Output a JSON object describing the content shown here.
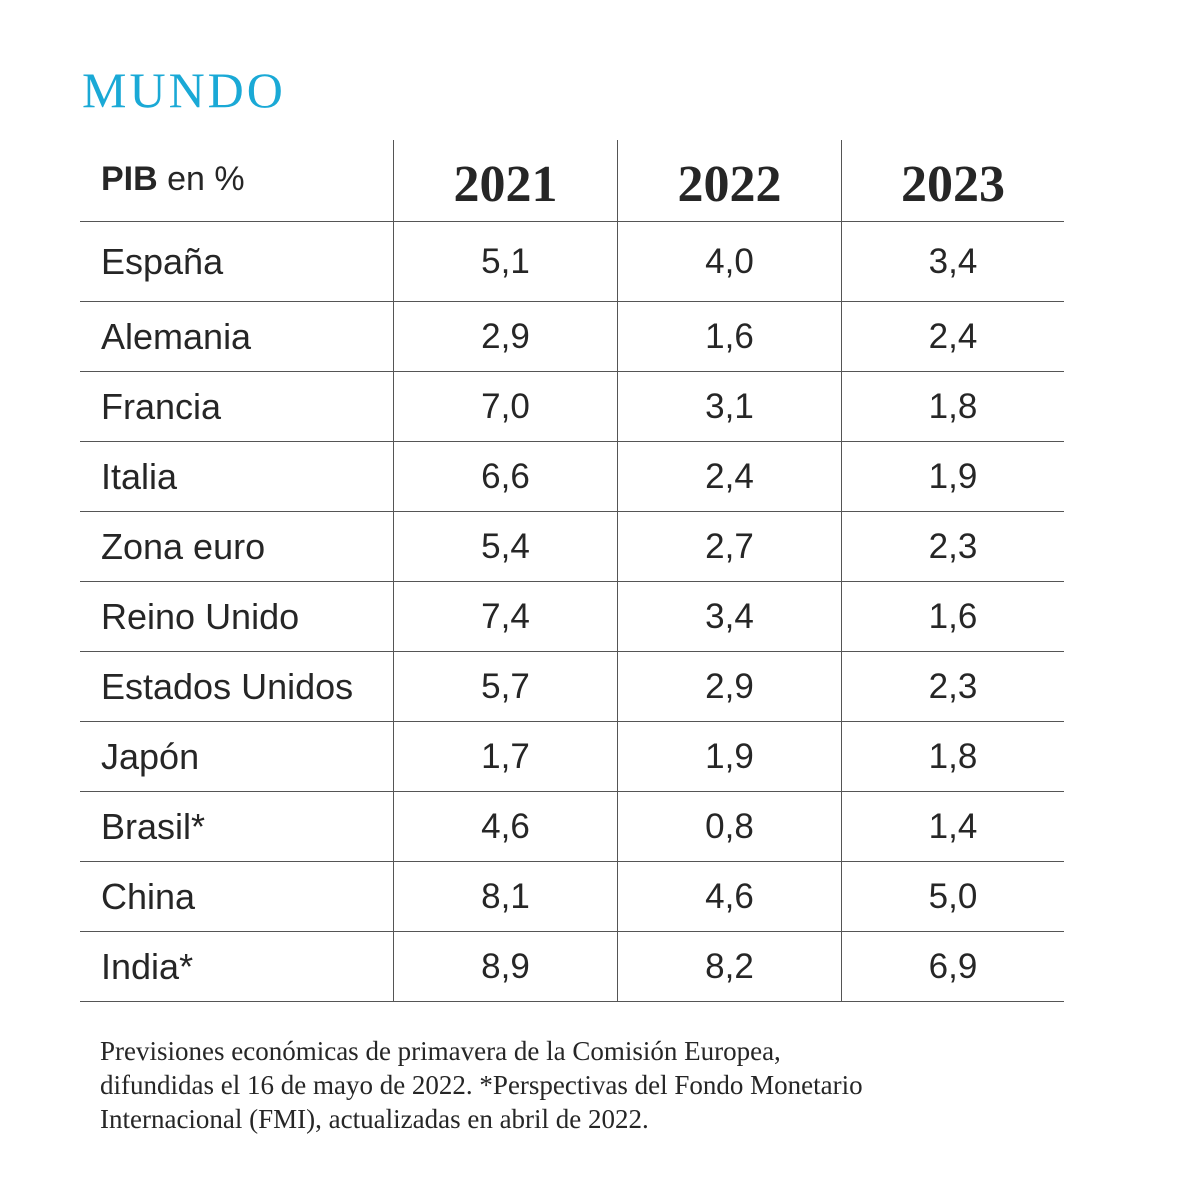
{
  "title": "MUNDO",
  "colors": {
    "title": "#1aa9d6",
    "rules": "#555555",
    "text": "#262626"
  },
  "chart_data": {
    "type": "table",
    "header": {
      "label_bold": "PIB",
      "label_rest": " en %"
    },
    "columns": [
      "2021",
      "2022",
      "2023"
    ],
    "rows": [
      {
        "label": "España",
        "values": [
          "5,1",
          "4,0",
          "3,4"
        ]
      },
      {
        "label": "Alemania",
        "values": [
          "2,9",
          "1,6",
          "2,4"
        ]
      },
      {
        "label": "Francia",
        "values": [
          "7,0",
          "3,1",
          "1,8"
        ]
      },
      {
        "label": "Italia",
        "values": [
          "6,6",
          "2,4",
          "1,9"
        ]
      },
      {
        "label": "Zona euro",
        "values": [
          "5,4",
          "2,7",
          "2,3"
        ]
      },
      {
        "label": "Reino Unido",
        "values": [
          "7,4",
          "3,4",
          "1,6"
        ]
      },
      {
        "label": "Estados Unidos",
        "values": [
          "5,7",
          "2,9",
          "2,3"
        ]
      },
      {
        "label": "Japón",
        "values": [
          "1,7",
          "1,9",
          "1,8"
        ]
      },
      {
        "label": "Brasil*",
        "values": [
          "4,6",
          "0,8",
          "1,4"
        ]
      },
      {
        "label": "China",
        "values": [
          "8,1",
          "4,6",
          "5,0"
        ]
      },
      {
        "label": "India*",
        "values": [
          "8,9",
          "8,2",
          "6,9"
        ]
      }
    ]
  },
  "footnote": {
    "lines": [
      "Previsiones económicas de primavera de la Comisión Europea,",
      "difundidas el 16 de mayo de 2022. *Perspectivas del Fondo Monetario",
      "Internacional (FMI), actualizadas en abril de 2022."
    ]
  }
}
